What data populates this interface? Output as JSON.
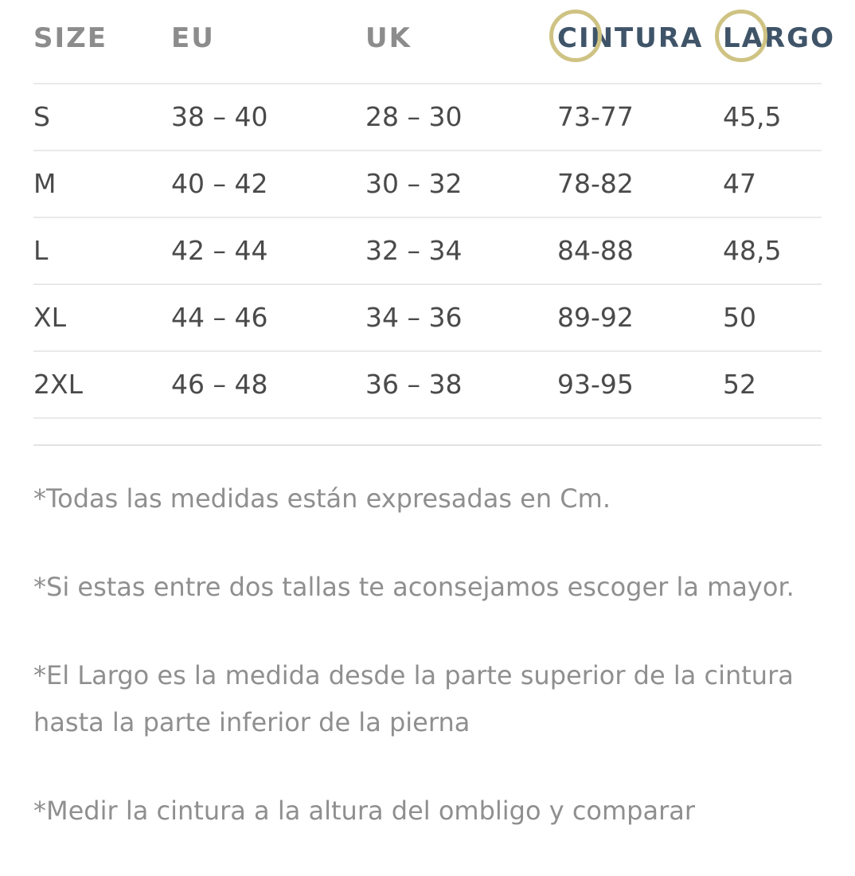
{
  "table": {
    "headers": [
      "SIZE",
      "EU",
      "UK",
      "CINTURA",
      "LARGO"
    ],
    "rows": [
      [
        "S",
        "38 – 40",
        "28 – 30",
        "73-77",
        "45,5"
      ],
      [
        "M",
        "40 – 42",
        "30 – 32",
        "78-82",
        "47"
      ],
      [
        "L",
        "42 – 44",
        "32 – 34",
        "84-88",
        "48,5"
      ],
      [
        "XL",
        "44 – 46",
        "34 – 36",
        "89-92",
        "50"
      ],
      [
        "2XL",
        "46 – 48",
        "36 – 38",
        "93-95",
        "52"
      ]
    ]
  },
  "notes": [
    "*Todas las medidas están expresadas en Cm.",
    "*Si estas entre dos tallas te aconsejamos escoger la mayor.",
    "*El Largo es la medida desde la parte superior de la cintura hasta la parte inferior de la pierna",
    "*Medir la cintura a la altura del ombligo y comparar"
  ],
  "colors": {
    "header_text": "#8c8c8c",
    "accent_header_text": "#3f5468",
    "body_text": "#4a4a4a",
    "note_text": "#8f8f8f",
    "row_divider": "#e9e9e9",
    "highlight_circle": "#cfc384"
  }
}
